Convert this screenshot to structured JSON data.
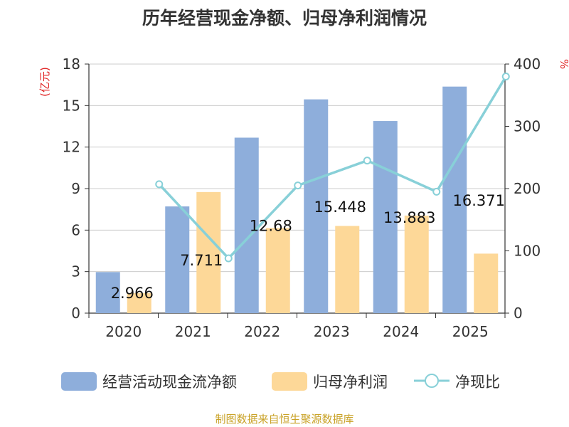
{
  "chart_data": {
    "type": "bar",
    "title": "历年经营现金净额、归母净利润情况",
    "categories": [
      "2020",
      "2021",
      "2022",
      "2023",
      "2024",
      "2025"
    ],
    "series": [
      {
        "name": "经营活动现金流净额",
        "type": "bar",
        "axis": "left",
        "color": "#8eaedb",
        "values": [
          2.966,
          7.711,
          12.68,
          15.448,
          13.883,
          16.371
        ],
        "labels": [
          "2.966",
          "7.711",
          "12.68",
          "15.448",
          "13.883",
          "16.371"
        ]
      },
      {
        "name": "归母净利润",
        "type": "bar",
        "axis": "left",
        "color": "#fdd898",
        "values": [
          1.45,
          8.75,
          6.15,
          6.3,
          7.05,
          4.3
        ]
      },
      {
        "name": "净现比",
        "type": "line",
        "axis": "right",
        "color": "#88d0d8",
        "values": [
          207,
          88,
          205,
          245,
          195,
          380
        ]
      }
    ],
    "left_axis": {
      "label": "(亿元)",
      "min": 0,
      "max": 18,
      "ticks": [
        "0",
        "3",
        "6",
        "9",
        "12",
        "15",
        "18"
      ]
    },
    "right_axis": {
      "label": "%",
      "min": 0,
      "max": 400,
      "ticks": [
        "0",
        "100",
        "200",
        "300",
        "400"
      ]
    },
    "grid": true,
    "legend_position": "bottom",
    "source": "制图数据来自恒生聚源数据库",
    "colors": {
      "axis": "#333333",
      "grid": "#cccccc",
      "axis_title": "#e02020",
      "source": "#c9a227"
    }
  }
}
